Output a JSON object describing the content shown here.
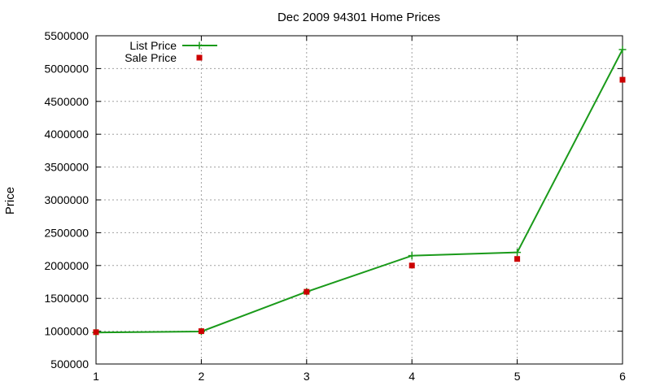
{
  "chart_data": {
    "type": "line",
    "title": "Dec 2009 94301 Home Prices",
    "xlabel": "",
    "ylabel": "Price",
    "x": [
      1,
      2,
      3,
      4,
      5,
      6
    ],
    "xlim": [
      1,
      6
    ],
    "ylim": [
      500000,
      5500000
    ],
    "x_ticks": [
      "1",
      "2",
      "3",
      "4",
      "5",
      "6"
    ],
    "y_ticks": [
      "500000",
      "1000000",
      "1500000",
      "2000000",
      "2500000",
      "3000000",
      "3500000",
      "4000000",
      "4500000",
      "5000000",
      "5500000"
    ],
    "grid": true,
    "legend_position": "top-left",
    "series": [
      {
        "name": "List Price",
        "style": "line-with-plus-markers",
        "color": "#1a9a1a",
        "values": [
          980000,
          995000,
          1600000,
          2150000,
          2200000,
          5290000
        ]
      },
      {
        "name": "Sale Price",
        "style": "square-markers",
        "color": "#cc0000",
        "values": [
          985000,
          1000000,
          1600000,
          2000000,
          2100000,
          4830000
        ]
      }
    ]
  }
}
